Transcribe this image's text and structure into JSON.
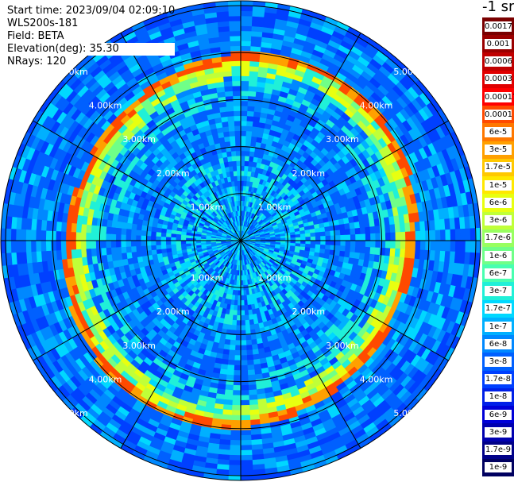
{
  "info": {
    "start_time": "Start time: 2023/09/04 02:09:10",
    "instrument": "WLS200s-181",
    "field": "Field: BETA",
    "elevation": "Elevation(deg): 35.30",
    "nrays": "NRays: 120"
  },
  "colorbar": {
    "title": "-1 sr",
    "labels": [
      "0.0017",
      "0.001",
      "0.0006",
      "0.0003",
      "0.00017",
      "0.0001",
      "6e-5",
      "3e-5",
      "1.7e-5",
      "1e-5",
      "6e-6",
      "3e-6",
      "1.7e-6",
      "1e-6",
      "6e-7",
      "3e-7",
      "1.7e-7",
      "1e-7",
      "6e-8",
      "3e-8",
      "1.7e-8",
      "1e-8",
      "6e-9",
      "3e-9",
      "1.7e-9",
      "1e-9"
    ],
    "colors": [
      "#7a0000",
      "#9a0000",
      "#c00000",
      "#e00000",
      "#ff0000",
      "#ff4a00",
      "#ff7800",
      "#ffa000",
      "#ffc800",
      "#ffe800",
      "#e8ff10",
      "#c0ff38",
      "#98ff60",
      "#70ff88",
      "#48ffb0",
      "#20f0d8",
      "#00d8ff",
      "#00b0ff",
      "#0088ff",
      "#0060ff",
      "#0040ff",
      "#0020e8",
      "#0000d8",
      "#0000b0",
      "#000088",
      "#000060"
    ]
  },
  "range_labels": [
    "1.00km",
    "2.00km",
    "3.00km",
    "4.00km",
    "5.00km"
  ]
}
